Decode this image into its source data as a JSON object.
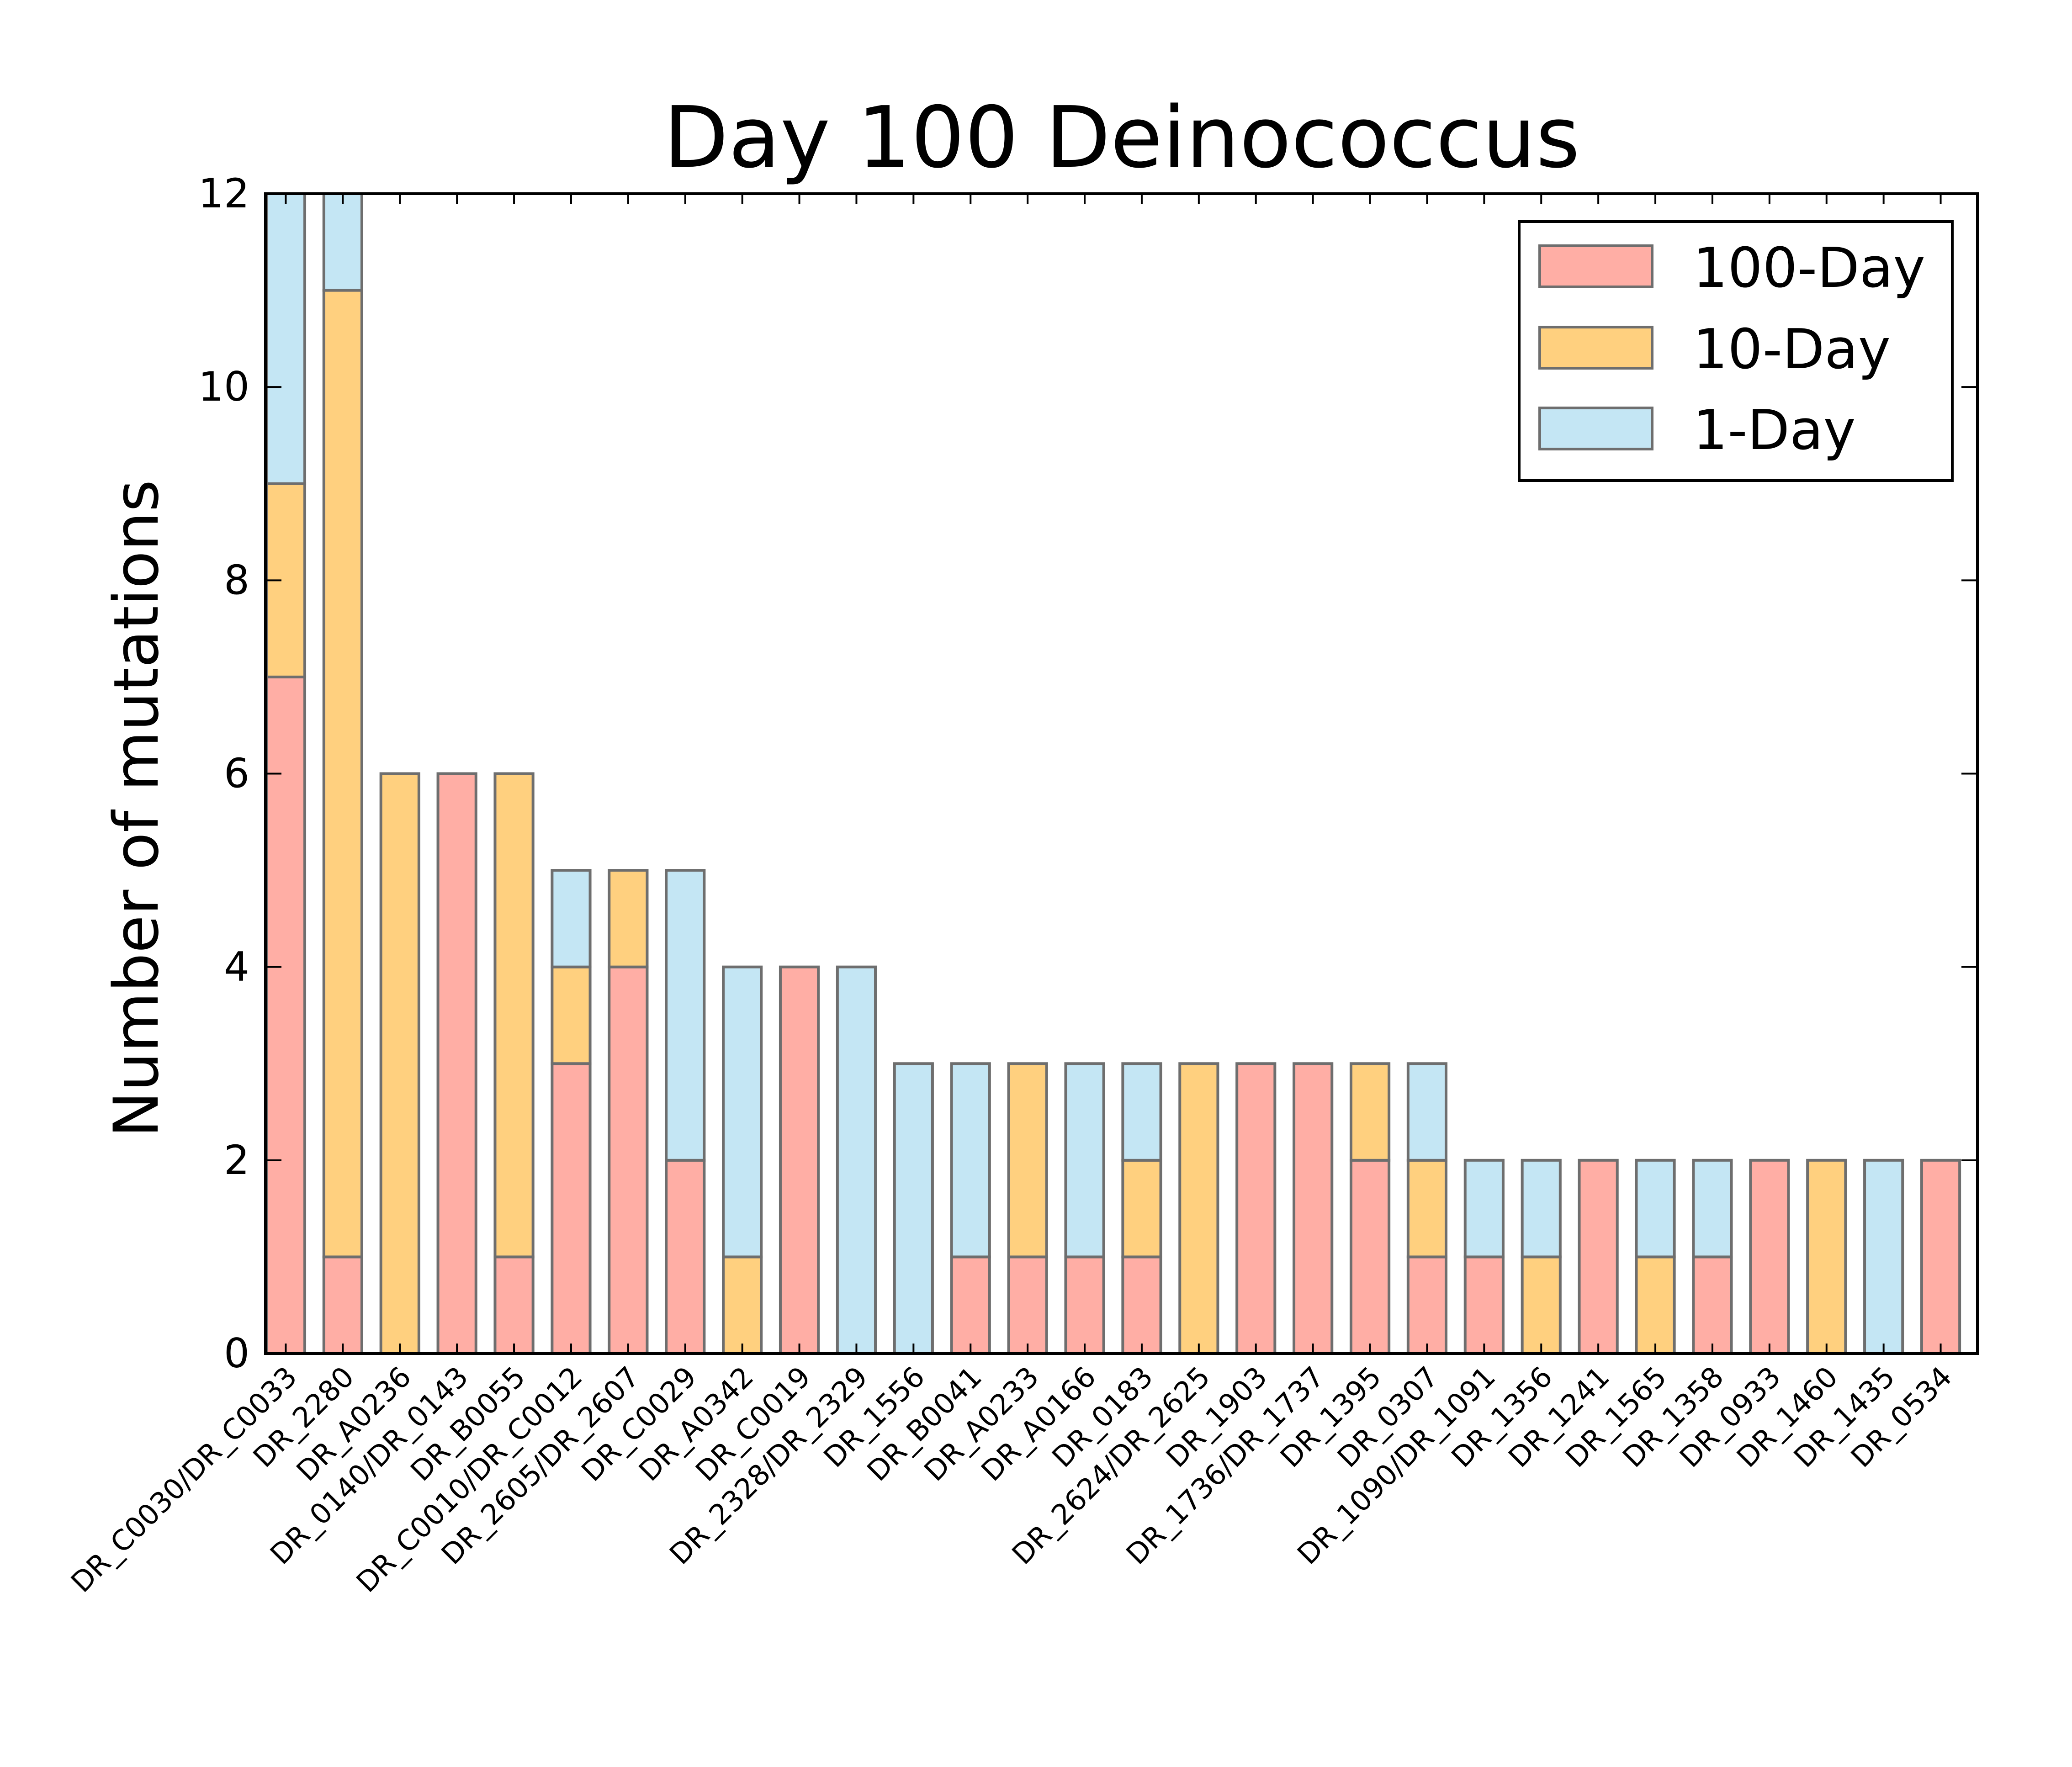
{
  "chart_data": {
    "type": "bar",
    "stacked": true,
    "title": "Day 100 Deinococcus",
    "xlabel": "",
    "ylabel": "Number of mutations",
    "ylim": [
      0,
      12
    ],
    "yticks": [
      0,
      2,
      4,
      6,
      8,
      10,
      12
    ],
    "grid": false,
    "legend_position": "top-right",
    "categories": [
      "DR_C0030/DR_C0033",
      "DR_2280",
      "DR_A0236",
      "DR_0140/DR_0143",
      "DR_B0055",
      "DR_C0010/DR_C0012",
      "DR_2605/DR_2607",
      "DR_C0029",
      "DR_A0342",
      "DR_C0019",
      "DR_2328/DR_2329",
      "DR_1556",
      "DR_B0041",
      "DR_A0233",
      "DR_A0166",
      "DR_0183",
      "DR_2624/DR_2625",
      "DR_1903",
      "DR_1736/DR_1737",
      "DR_1395",
      "DR_0307",
      "DR_1090/DR_1091",
      "DR_1356",
      "DR_1241",
      "DR_1565",
      "DR_1358",
      "DR_0933",
      "DR_1460",
      "DR_1435",
      "DR_0534"
    ],
    "series": [
      {
        "name": "100-Day",
        "color": "#ffaea5",
        "values": [
          7,
          1,
          0,
          6,
          1,
          3,
          4,
          2,
          0,
          4,
          0,
          0,
          1,
          1,
          1,
          1,
          0,
          3,
          3,
          2,
          1,
          1,
          0,
          2,
          0,
          1,
          2,
          0,
          0,
          2
        ]
      },
      {
        "name": "10-Day",
        "color": "#ffd07f",
        "values": [
          2,
          10,
          6,
          0,
          5,
          1,
          1,
          0,
          1,
          0,
          0,
          0,
          0,
          2,
          0,
          1,
          3,
          0,
          0,
          1,
          1,
          0,
          1,
          0,
          1,
          0,
          0,
          2,
          0,
          0
        ]
      },
      {
        "name": "1-Day",
        "color": "#c4e6f4",
        "values": [
          3,
          1,
          0,
          0,
          0,
          1,
          0,
          3,
          3,
          0,
          4,
          3,
          2,
          0,
          2,
          1,
          0,
          0,
          0,
          0,
          1,
          1,
          1,
          0,
          1,
          1,
          0,
          0,
          2,
          0
        ]
      }
    ]
  }
}
